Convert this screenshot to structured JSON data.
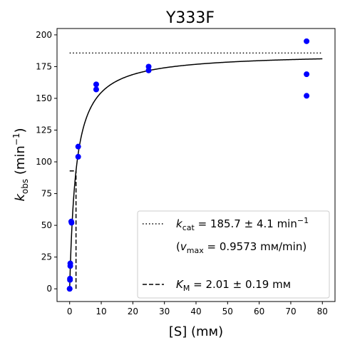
{
  "chart_data": {
    "type": "scatter",
    "title": "Y333F",
    "xlabel": "[S] (mм)",
    "ylabel": {
      "base": "k",
      "sub": "obs",
      "unit_open": " (min",
      "sup": "−1",
      "unit_close": ")"
    },
    "xlim": [
      -4,
      84
    ],
    "ylim": [
      -10,
      205
    ],
    "xticks": [
      0,
      10,
      20,
      30,
      40,
      50,
      60,
      70,
      80
    ],
    "yticks": [
      0,
      25,
      50,
      75,
      100,
      125,
      150,
      175,
      200
    ],
    "grid": false,
    "legend_position": "lower-right",
    "series": [
      {
        "kind": "points",
        "color": "#0000ff",
        "x": [
          0,
          0,
          0.1,
          0.1,
          0.2,
          0.2,
          0.5,
          0.6,
          2.7,
          2.7,
          8.4,
          8.4,
          25,
          25,
          75,
          75,
          75
        ],
        "y": [
          0,
          0,
          7,
          8,
          18,
          20,
          53,
          52,
          104,
          112,
          157,
          161,
          172,
          175,
          195,
          169,
          152
        ]
      },
      {
        "kind": "fit-curve",
        "color": "#000000",
        "vmax": 185.7,
        "km": 2.01,
        "x_range": [
          0,
          80
        ]
      },
      {
        "kind": "kcat-line",
        "color": "#000000",
        "style": "dotted",
        "y": 185.7,
        "x_range": [
          0,
          80
        ]
      },
      {
        "kind": "km-marker",
        "color": "#000000",
        "style": "dashed",
        "x": 2.01,
        "y_range": [
          0,
          92.85
        ],
        "hline_x_range": [
          0,
          2.01
        ]
      }
    ],
    "legend": [
      {
        "style": "dotted",
        "sym": "k",
        "sub": "cat",
        "text": " = 185.7 ± 4.1 min",
        "sup": "−1"
      },
      {
        "style": "none",
        "open": "(",
        "sym": "v",
        "sub": "max",
        "text": " = 0.9573 mм/min)"
      },
      {
        "style": "dashed",
        "sym": "K",
        "sub": "M",
        "text": " = 2.01 ± 0.19 mм"
      }
    ]
  }
}
